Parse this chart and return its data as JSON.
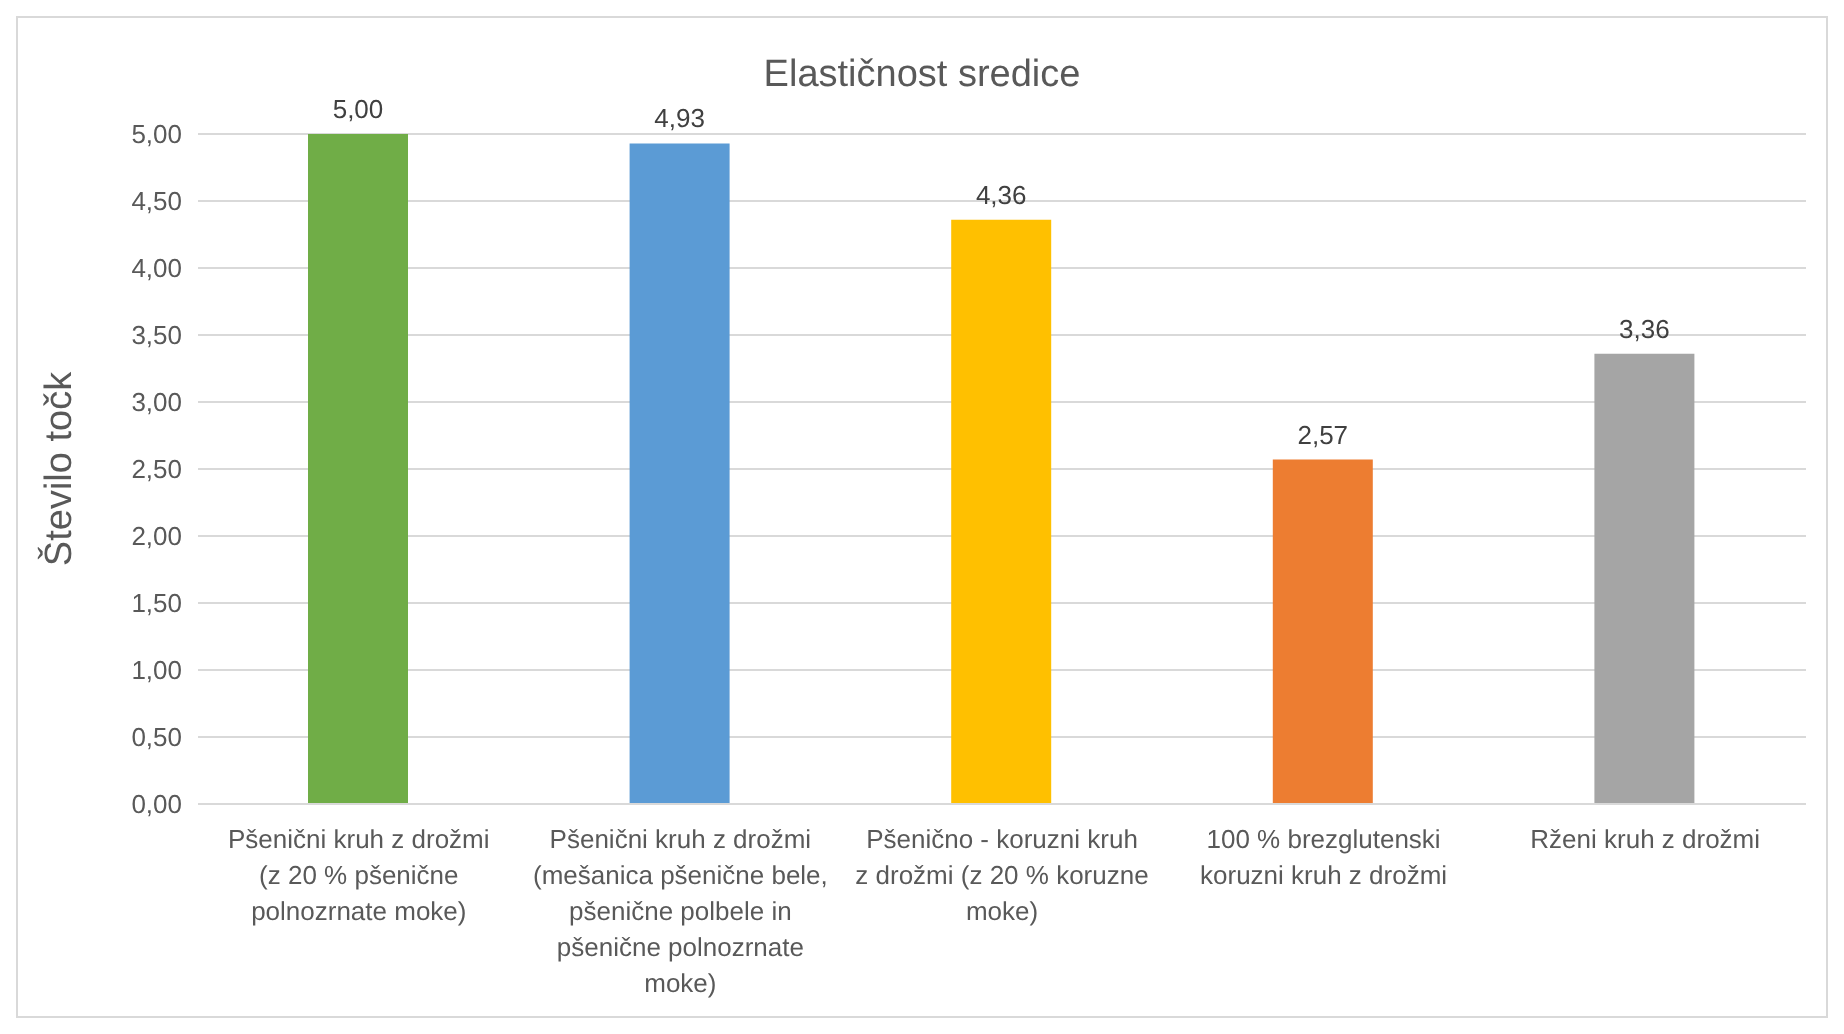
{
  "chart_data": {
    "type": "bar",
    "title": "Elastičnost sredice",
    "ylabel": "Število točk",
    "categories": [
      "Pšenični kruh z drožmi (z 20 % pšenične polnozrnate moke)",
      "Pšenični kruh z drožmi (mešanica pšenične bele, pšenične polbele in pšenične polnozrnate moke)",
      "Pšenično - koruzni kruh z drožmi (z 20 % koruzne moke)",
      "100 % brezglutenski koruzni kruh z drožmi",
      "Rženi kruh z drožmi"
    ],
    "values": [
      5.0,
      4.93,
      4.36,
      2.57,
      3.36
    ],
    "colors": [
      "#70ad47",
      "#5b9bd5",
      "#ffc000",
      "#ed7d31",
      "#a5a5a5"
    ],
    "value_labels": [
      "5,00",
      "4,93",
      "4,36",
      "2,57",
      "3,36"
    ],
    "ylim": [
      0,
      5
    ],
    "yticks": [
      {
        "value": 0,
        "label": "0,00"
      },
      {
        "value": 0.5,
        "label": "0,50"
      },
      {
        "value": 1,
        "label": "1,00"
      },
      {
        "value": 1.5,
        "label": "1,50"
      },
      {
        "value": 2,
        "label": "2,00"
      },
      {
        "value": 2.5,
        "label": "2,50"
      },
      {
        "value": 3,
        "label": "3,00"
      },
      {
        "value": 3.5,
        "label": "3,50"
      },
      {
        "value": 4,
        "label": "4,00"
      },
      {
        "value": 4.5,
        "label": "4,50"
      },
      {
        "value": 5,
        "label": "5,00"
      }
    ],
    "grid": "y",
    "legend": false
  }
}
